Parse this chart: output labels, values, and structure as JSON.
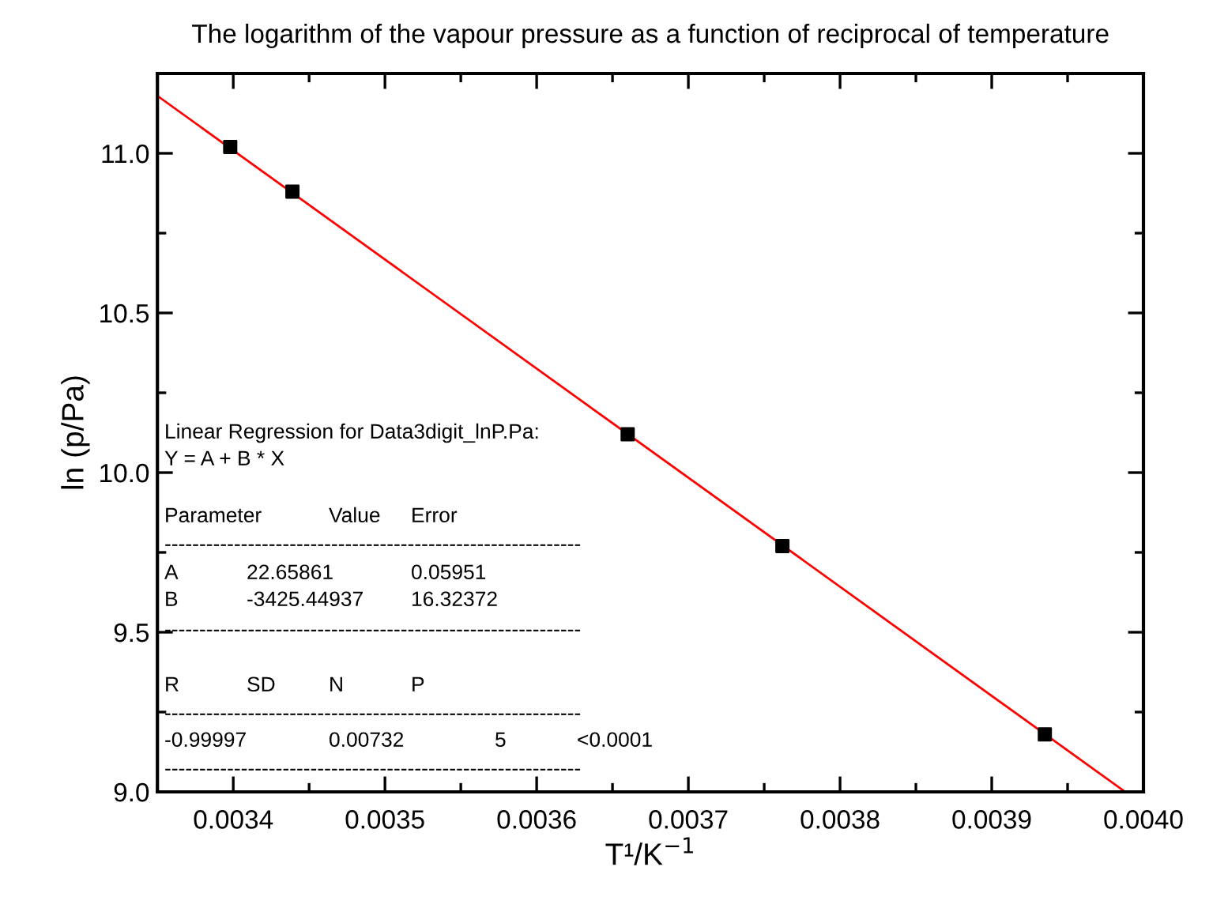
{
  "chart_data": {
    "type": "scatter",
    "title": "The logarithm of the vapour pressure as a function of reciprocal of temperature",
    "xlabel": "T¹/K$^{−1}$",
    "ylabel": "ln (p/Pa)",
    "series": [
      {
        "color": "#000000",
        "marker": "square",
        "x": [
          0.003398,
          0.003439,
          0.00366,
          0.003762,
          0.003935
        ],
        "values": [
          11.02,
          10.88,
          10.12,
          9.77,
          9.18
        ]
      },
      {
        "type": "line",
        "color": "#ff0000",
        "marker": "none",
        "line_style": "solid",
        "x": [
          0.00335,
          0.003988
        ],
        "values": [
          11.18,
          9.0
        ]
      }
    ],
    "xlim": [
      0.00335,
      0.004
    ],
    "ylim": [
      9.0,
      11.25
    ],
    "xticks": [
      {
        "value": 0.00335,
        "label": null
      },
      0.0034,
      {
        "value": 0.00345,
        "label": null
      },
      0.0035,
      {
        "value": 0.00355,
        "label": null
      },
      0.0036,
      {
        "value": 0.00365,
        "label": null
      },
      0.0037,
      {
        "value": 0.00375,
        "label": null
      },
      0.0038,
      {
        "value": 0.00385,
        "label": null
      },
      0.0039,
      {
        "value": 0.00395,
        "label": null
      },
      {
        "value": 0.004,
        "label": "0.0040"
      }
    ],
    "yticks": [
      {
        "value": 9.0,
        "label": "9.0"
      },
      {
        "value": 9.25,
        "label": null
      },
      9.5,
      {
        "value": 9.75,
        "label": null
      },
      {
        "value": 10.0,
        "label": "10.0"
      },
      {
        "value": 10.25,
        "label": null
      },
      10.5,
      {
        "value": 10.75,
        "label": null
      },
      {
        "value": 11.0,
        "label": "11.0"
      }
    ],
    "grid": false,
    "legend": false,
    "annotations": [
      "Linear Regression for Data3digit_lnP.Pa:",
      "Y = A + B * X",
      "Parameter",
      "Value",
      "Error",
      "------------------------------------------------------------",
      "A",
      "22.65861",
      "0.05951",
      "B",
      "-3425.44937",
      "16.32372",
      "------------------------------------------------------------",
      "R",
      "SD",
      "N",
      "P",
      "------------------------------------------------------------",
      "-0.99997",
      "0.00732",
      "5",
      "<0.0001",
      "------------------------------------------------------------"
    ]
  }
}
